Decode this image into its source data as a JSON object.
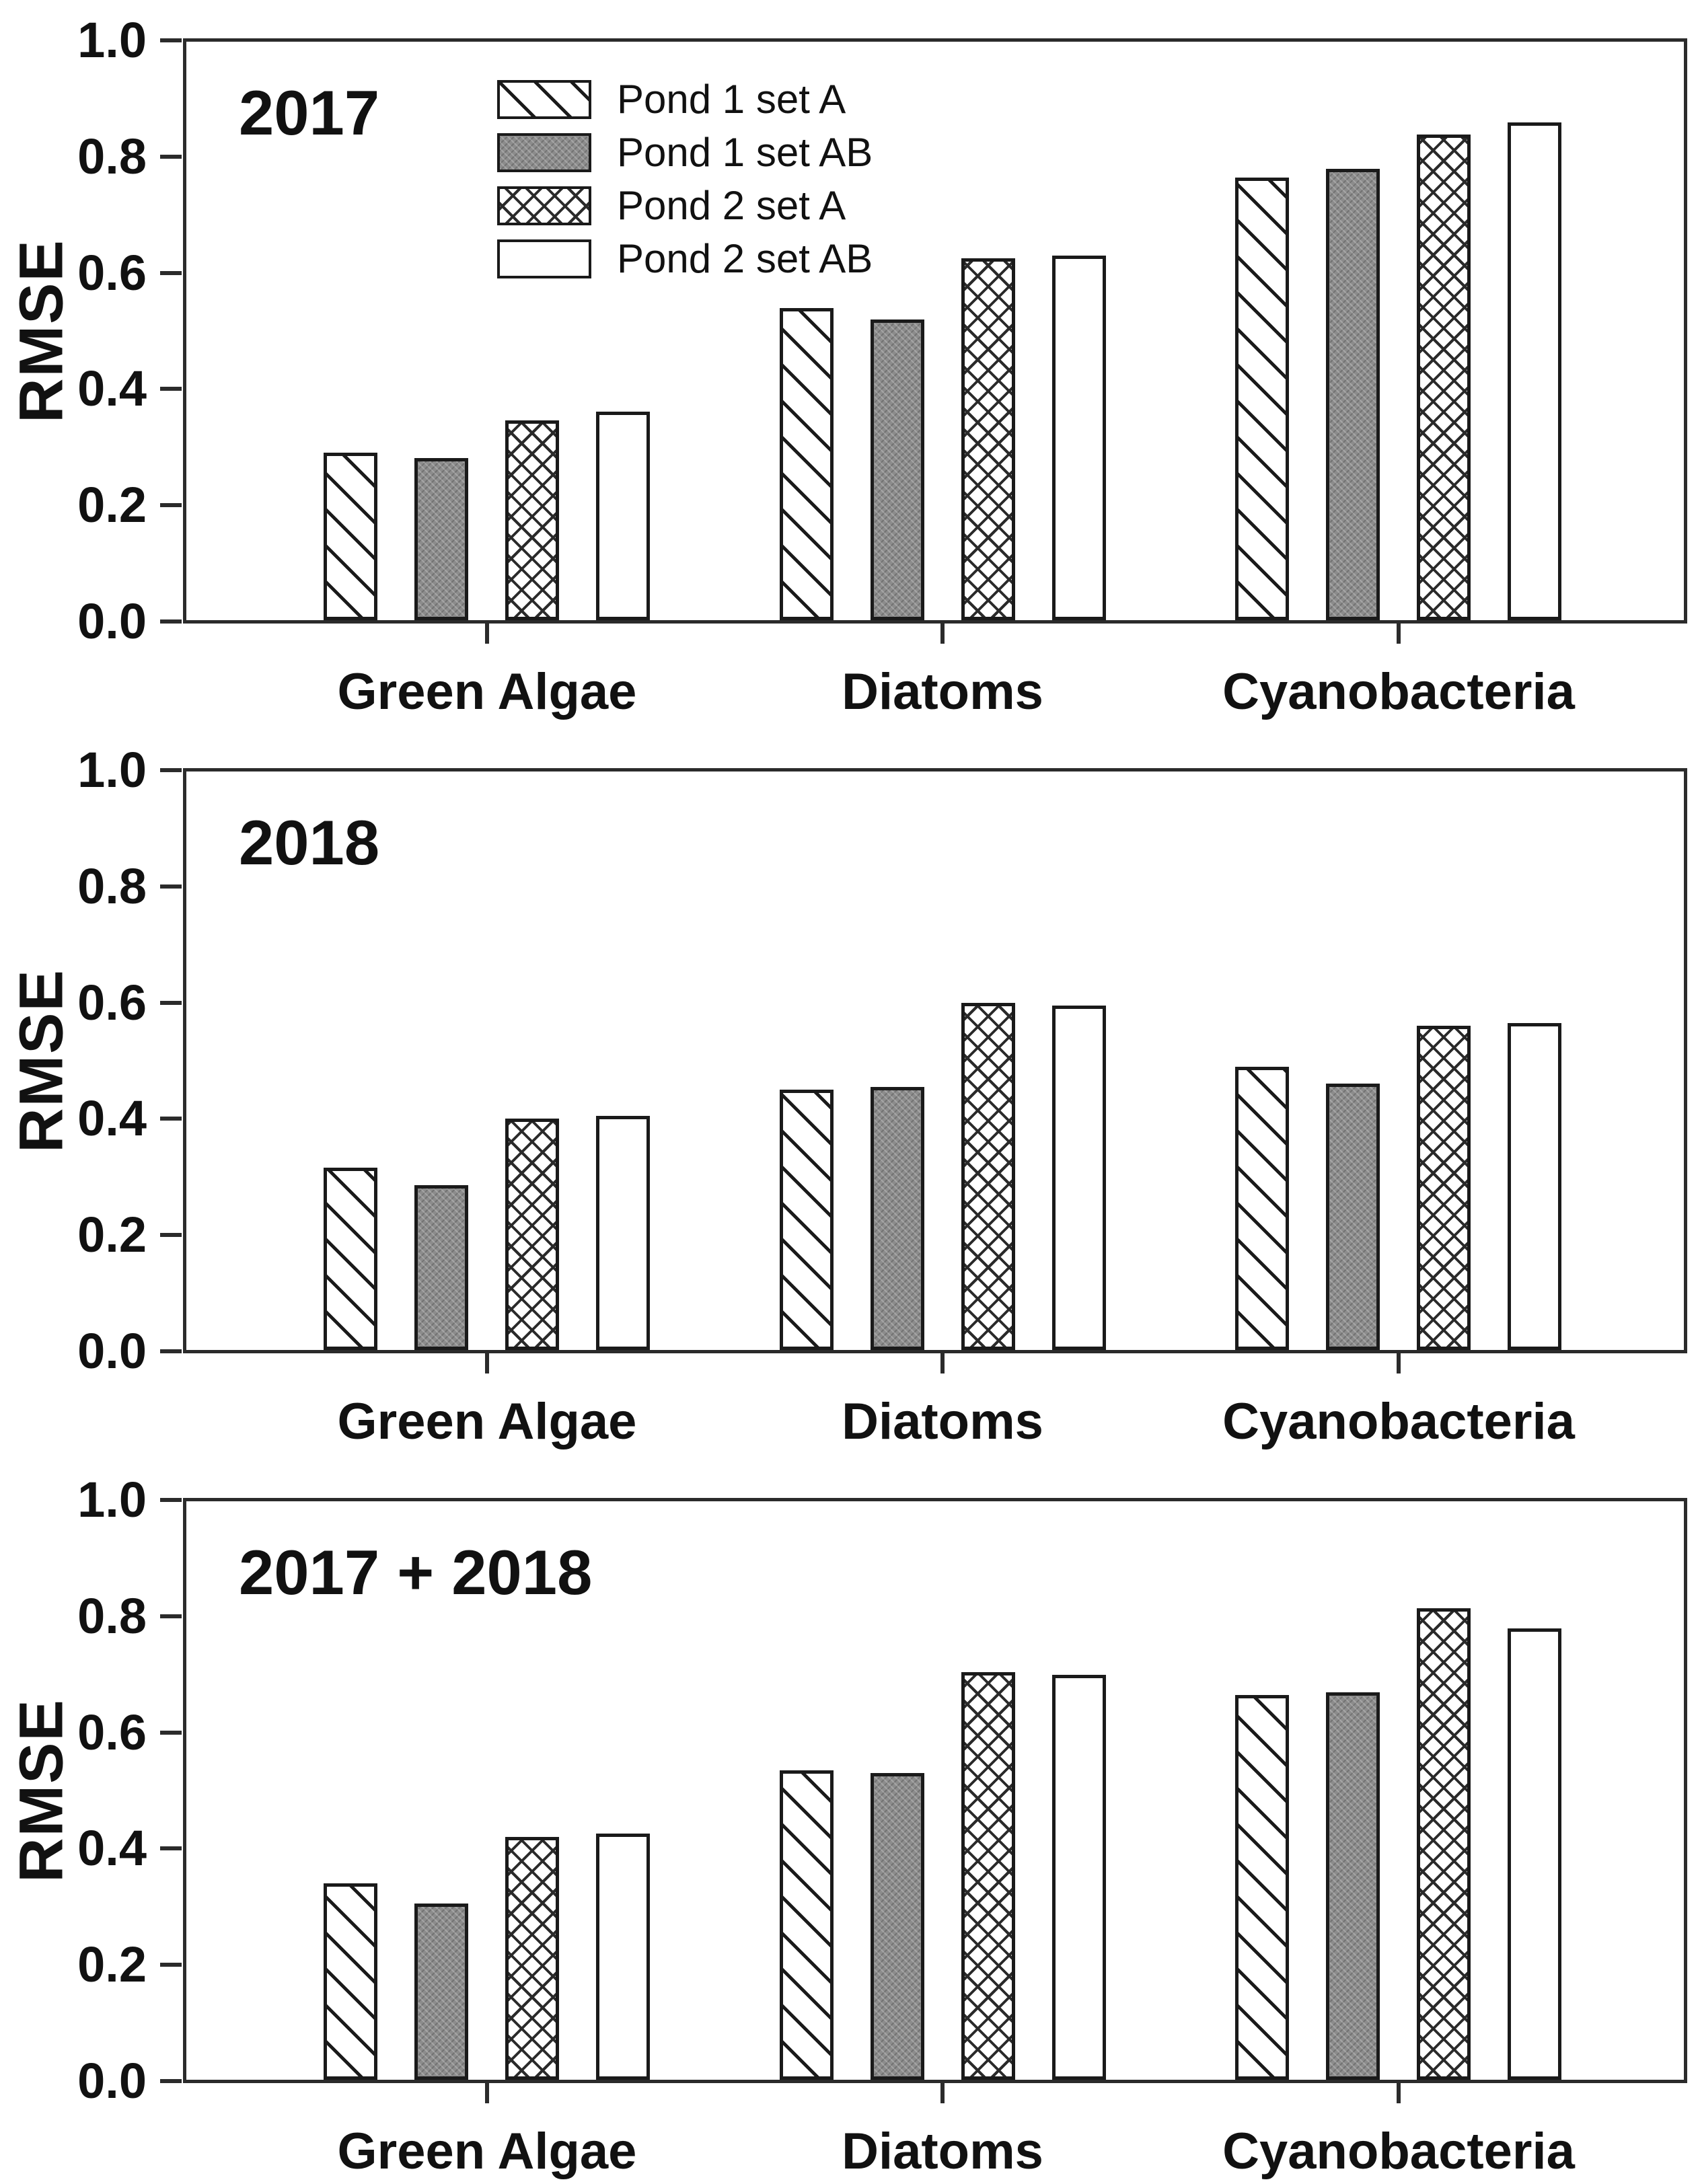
{
  "figure": {
    "ylabel": "RMSE",
    "ytick_labels": [
      "0.0",
      "0.2",
      "0.4",
      "0.6",
      "0.8",
      "1.0"
    ],
    "categories": [
      "Green Algae",
      "Diatoms",
      "Cyanobacteria"
    ],
    "legend": [
      {
        "label": "Pond 1 set A",
        "pattern": "diagonal-hatch"
      },
      {
        "label": "Pond 1 set AB",
        "pattern": "gray-dot-fill"
      },
      {
        "label": "Pond 2 set A",
        "pattern": "crosshatch"
      },
      {
        "label": "Pond 2 set AB",
        "pattern": "open-white"
      }
    ],
    "colors": {
      "outline": "#1a1a1a",
      "gray_fill": "#8c8c8c",
      "background": "#ffffff"
    }
  },
  "chart_data": [
    {
      "type": "bar",
      "title": "2017",
      "ylabel": "RMSE",
      "ylim": [
        0.0,
        1.0
      ],
      "grid": false,
      "legend_position": "upper-center-inside",
      "categories": [
        "Green Algae",
        "Diatoms",
        "Cyanobacteria"
      ],
      "series": [
        {
          "name": "Pond 1 set A",
          "pattern": "diagonal-hatch",
          "values": [
            0.29,
            0.54,
            0.765
          ]
        },
        {
          "name": "Pond 1 set AB",
          "pattern": "gray-dot-fill",
          "values": [
            0.28,
            0.52,
            0.78
          ]
        },
        {
          "name": "Pond 2 set A",
          "pattern": "crosshatch",
          "values": [
            0.345,
            0.625,
            0.84
          ]
        },
        {
          "name": "Pond 2 set AB",
          "pattern": "open-white",
          "values": [
            0.36,
            0.63,
            0.86
          ]
        }
      ]
    },
    {
      "type": "bar",
      "title": "2018",
      "ylabel": "RMSE",
      "ylim": [
        0.0,
        1.0
      ],
      "grid": false,
      "legend_position": "none",
      "categories": [
        "Green Algae",
        "Diatoms",
        "Cyanobacteria"
      ],
      "series": [
        {
          "name": "Pond 1 set A",
          "pattern": "diagonal-hatch",
          "values": [
            0.315,
            0.45,
            0.49
          ]
        },
        {
          "name": "Pond 1 set AB",
          "pattern": "gray-dot-fill",
          "values": [
            0.285,
            0.455,
            0.46
          ]
        },
        {
          "name": "Pond 2 set A",
          "pattern": "crosshatch",
          "values": [
            0.4,
            0.6,
            0.56
          ]
        },
        {
          "name": "Pond 2 set AB",
          "pattern": "open-white",
          "values": [
            0.405,
            0.595,
            0.565
          ]
        }
      ]
    },
    {
      "type": "bar",
      "title": "2017 + 2018",
      "ylabel": "RMSE",
      "ylim": [
        0.0,
        1.0
      ],
      "grid": false,
      "legend_position": "none",
      "categories": [
        "Green Algae",
        "Diatoms",
        "Cyanobacteria"
      ],
      "series": [
        {
          "name": "Pond 1 set A",
          "pattern": "diagonal-hatch",
          "values": [
            0.34,
            0.535,
            0.665
          ]
        },
        {
          "name": "Pond 1 set AB",
          "pattern": "gray-dot-fill",
          "values": [
            0.305,
            0.53,
            0.67
          ]
        },
        {
          "name": "Pond 2 set A",
          "pattern": "crosshatch",
          "values": [
            0.42,
            0.705,
            0.815
          ]
        },
        {
          "name": "Pond 2 set AB",
          "pattern": "open-white",
          "values": [
            0.425,
            0.7,
            0.78
          ]
        }
      ]
    }
  ]
}
